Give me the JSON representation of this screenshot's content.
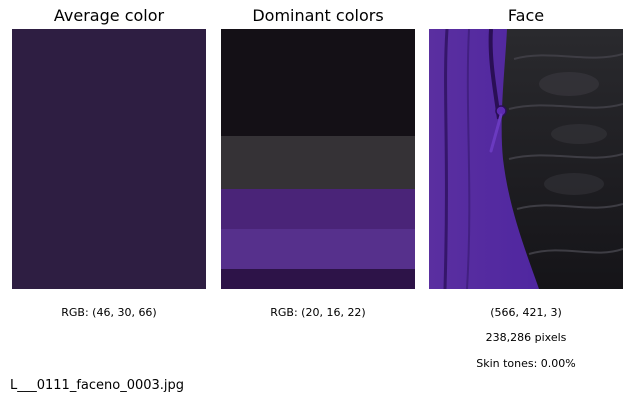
{
  "panels": [
    {
      "title": "Average color",
      "swatch_color": "#2e1e42",
      "captions": [
        "RGB: (46, 30, 66)"
      ]
    },
    {
      "title": "Dominant colors",
      "stripes": [
        {
          "color": "#141016",
          "share": 0.41
        },
        {
          "color": "#353236",
          "share": 0.205
        },
        {
          "color": "#4a2478",
          "share": 0.155
        },
        {
          "color": "#56308c",
          "share": 0.155
        },
        {
          "color": "#2d1348",
          "share": 0.075
        }
      ],
      "captions": [
        "RGB: (20, 16, 22)"
      ]
    },
    {
      "title": "Face",
      "image_content": "purple-fleece-and-black-quilted-jacket-with-zipper",
      "captions": [
        "(566, 421, 3)",
        "238,286 pixels",
        "Skin tones: 0.00%"
      ]
    }
  ],
  "footer": {
    "filename": "L___0111_faceno_0003.jpg"
  }
}
